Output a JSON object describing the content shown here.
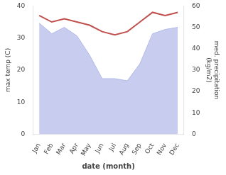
{
  "chart_data": {
    "type": "line",
    "categories": [
      "Jan",
      "Feb",
      "Mar",
      "Apr",
      "May",
      "Jun",
      "Jul",
      "Aug",
      "Sep",
      "Oct",
      "Nov",
      "Dec"
    ],
    "series": [
      {
        "type": "area",
        "axis": "y2",
        "color": "#b0b8e8",
        "values": [
          52,
          47,
          50,
          46,
          37,
          26,
          26,
          25,
          33,
          47,
          49,
          50
        ]
      },
      {
        "type": "line",
        "color": "#c0504d",
        "values": [
          37,
          35,
          36,
          35,
          34,
          32,
          31,
          32,
          35,
          38,
          37,
          38
        ]
      }
    ],
    "xlabel": "date (month)",
    "ylabel": "max temp (C)",
    "y2label": "med. precipitation\n(kg/m2)",
    "ylim": [
      0,
      40
    ],
    "yticks": [
      0,
      10,
      20,
      30,
      40
    ],
    "y2lim": [
      0,
      60
    ],
    "y2ticks": [
      0,
      10,
      20,
      30,
      40,
      50,
      60
    ],
    "grid": false
  }
}
